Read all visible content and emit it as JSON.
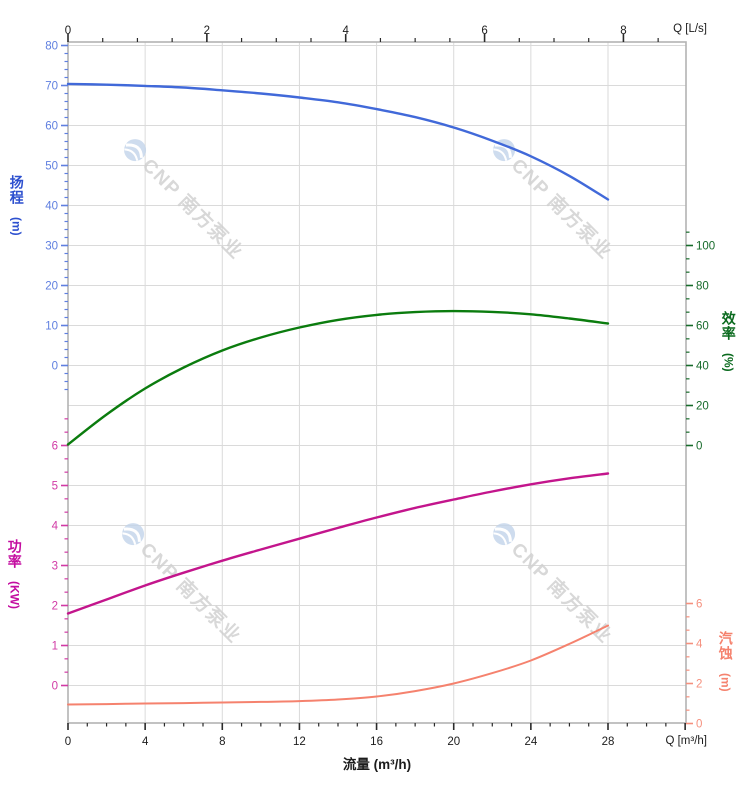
{
  "watermark": {
    "brand": "CNP 南方泵业"
  },
  "axes_titles": {
    "head": {
      "title": "扬程",
      "unit": "(m)"
    },
    "power": {
      "title": "功率",
      "unit": "(KW)"
    },
    "efficiency": {
      "title": "效率",
      "unit": "(%)"
    },
    "npsh": {
      "title": "汽蚀",
      "unit": "(m)"
    },
    "flow_bottom": {
      "title": "流量 (m³/h)"
    },
    "flow_top_corner": "Q [L/s]",
    "flow_bottom_corner": "Q [m³/h]"
  },
  "chart_data": {
    "type": "line",
    "title": "",
    "grid": "on",
    "x_axis_bottom": {
      "label": "流量 (m³/h)",
      "unit": "m³/h",
      "major_ticks": [
        0,
        4,
        8,
        12,
        16,
        20,
        24,
        28
      ],
      "minors_per_interval": 3,
      "extra_minors_above": 3,
      "unlabeled_majors": [
        32
      ],
      "range": [
        0,
        32
      ],
      "tick_color": "#2a2a2a",
      "label_color": "#1c1c1c"
    },
    "x_axis_top": {
      "label": "Q [L/s]",
      "unit": "L/s",
      "major_ticks": [
        0,
        2,
        4,
        6,
        8
      ],
      "minors_per_interval": 3,
      "extra_minors_above": 1,
      "unlabeled_majors": [],
      "range": [
        0,
        8.9
      ],
      "tick_color": "#2a2a2a",
      "label_color": "#1c1c1c"
    },
    "y_axes": [
      {
        "id": "head",
        "name": "扬程",
        "unit": "m",
        "side": "left",
        "range": [
          0,
          80
        ],
        "major_ticks": [
          0,
          10,
          20,
          30,
          40,
          50,
          60,
          70,
          80
        ],
        "minors_per_interval": 4,
        "extra_minors_below": 3,
        "extra_minors_above": 0,
        "curve_color": "#4169d9",
        "label_color": "#5f7fe0",
        "title_color": "#2d50cf"
      },
      {
        "id": "efficiency",
        "name": "效率",
        "unit": "%",
        "side": "right",
        "range": [
          0,
          100
        ],
        "major_ticks": [
          0,
          20,
          40,
          60,
          80,
          100
        ],
        "minors_per_interval": 2,
        "extra_minors_below": 0,
        "extra_minors_above": 1,
        "curve_color": "#0b7c0e",
        "label_color": "#176b2b",
        "title_color": "#0a6a1e"
      },
      {
        "id": "power",
        "name": "功率",
        "unit": "KW",
        "side": "left",
        "range": [
          0,
          6
        ],
        "major_ticks": [
          0,
          1,
          2,
          3,
          4,
          5,
          6
        ],
        "minors_per_interval": 2,
        "extra_minors_below": 0,
        "extra_minors_above": 2,
        "curve_color": "#c3158c",
        "label_color": "#d13aa5",
        "title_color": "#c40da0"
      },
      {
        "id": "npsh",
        "name": "汽蚀",
        "unit": "m",
        "side": "right",
        "range": [
          0,
          6
        ],
        "major_ticks": [
          0,
          2,
          4,
          6
        ],
        "minors_per_interval": 2,
        "extra_minors_below": 0,
        "extra_minors_above": 0,
        "curve_color": "#f5826e",
        "label_color": "#f5907e",
        "title_color": "#f5826e"
      }
    ],
    "x_values": [
      0,
      2,
      4,
      6,
      8,
      10,
      12,
      14,
      16,
      18,
      20,
      22,
      24,
      26,
      28
    ],
    "series": [
      {
        "id": "head",
        "name": "扬程",
        "axis": "head",
        "color": "#4169d9",
        "values": [
          70.4,
          70.2,
          69.9,
          69.5,
          68.8,
          68.0,
          67.0,
          65.8,
          64.1,
          62.1,
          59.5,
          56.2,
          52.3,
          47.4,
          41.5
        ]
      },
      {
        "id": "efficiency",
        "name": "效率",
        "axis": "efficiency",
        "color": "#0b7c0e",
        "values": [
          0.5,
          15.5,
          28.5,
          39.0,
          47.5,
          54.0,
          59.0,
          62.8,
          65.3,
          66.7,
          67.2,
          66.8,
          65.6,
          63.5,
          61.0
        ]
      },
      {
        "id": "power",
        "name": "功率",
        "axis": "power",
        "color": "#c3158c",
        "values": [
          1.8,
          2.15,
          2.5,
          2.82,
          3.12,
          3.4,
          3.67,
          3.94,
          4.2,
          4.44,
          4.65,
          4.85,
          5.03,
          5.18,
          5.3
        ]
      },
      {
        "id": "npsh",
        "name": "汽蚀",
        "axis": "npsh",
        "color": "#f5826e",
        "values": [
          0.95,
          0.97,
          1.0,
          1.02,
          1.05,
          1.08,
          1.12,
          1.2,
          1.35,
          1.62,
          2.0,
          2.52,
          3.15,
          3.98,
          4.9
        ]
      }
    ]
  }
}
